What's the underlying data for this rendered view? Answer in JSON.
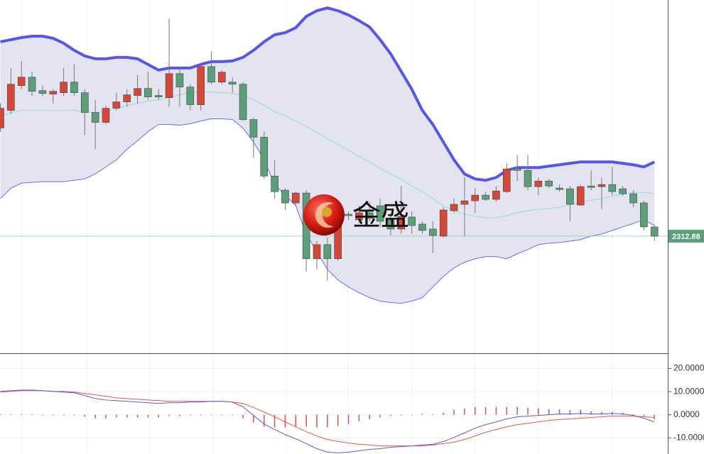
{
  "chart_data": [
    {
      "type": "candlestick",
      "ylim": [
        2230,
        2480
      ],
      "up_color": "#d4483a",
      "down_color": "#5b9e7a",
      "open": [
        2389.4,
        2401.9,
        2419.4,
        2425.4,
        2415.9,
        2413.4,
        2414.4,
        2421.9,
        2414.4,
        2400.4,
        2393.4,
        2403.4,
        2407.9,
        2412.4,
        2417.4,
        2412.4,
        2410.9,
        2427.9,
        2418.4,
        2405.9,
        2432.9,
        2421.9,
        2421.9,
        2420.4,
        2395.4,
        2382.9,
        2355.4,
        2345.4,
        2336.4,
        2343.4,
        2296.9,
        2306.9,
        2296.9,
        2328.4,
        2324.4,
        2329.4,
        2334.4,
        2324.4,
        2317.9,
        2326.4,
        2321.4,
        2317.9,
        2312.9,
        2330.9,
        2335.4,
        2337.9,
        2341.9,
        2338.9,
        2344.4,
        2360.9,
        2359.4,
        2347.9,
        2351.9,
        2346.9,
        2346.4,
        2334.9,
        2348.4,
        2347.9,
        2349.4,
        2346.4,
        2342.9,
        2336.4,
        2319.4
      ],
      "high": [
        2406.9,
        2431.9,
        2436.9,
        2429.4,
        2419.4,
        2416.9,
        2431.9,
        2434.4,
        2416.9,
        2409.4,
        2405.4,
        2414.4,
        2416.9,
        2426.9,
        2429.4,
        2416.9,
        2466.9,
        2431.9,
        2420.4,
        2434.4,
        2443.4,
        2430.4,
        2425.4,
        2421.9,
        2396.9,
        2386.9,
        2366.9,
        2346.9,
        2344.4,
        2345.4,
        2309.4,
        2311.9,
        2334.4,
        2330.4,
        2334.4,
        2336.9,
        2339.4,
        2329.4,
        2348.4,
        2330.4,
        2323.4,
        2323.4,
        2333.4,
        2339.4,
        2354.4,
        2346.9,
        2344.4,
        2348.4,
        2364.4,
        2370.4,
        2370.4,
        2354.4,
        2353.4,
        2349.4,
        2348.4,
        2349.4,
        2359.4,
        2354.4,
        2361.9,
        2348.4,
        2345.4,
        2337.9,
        2320.4
      ],
      "low": [
        2386.9,
        2399.4,
        2416.9,
        2411.9,
        2411.9,
        2406.9,
        2411.9,
        2411.9,
        2384.4,
        2374.4,
        2391.9,
        2401.9,
        2404.4,
        2406.9,
        2409.4,
        2409.4,
        2404.4,
        2404.4,
        2401.9,
        2401.9,
        2420.4,
        2420.4,
        2414.4,
        2394.4,
        2368.4,
        2353.4,
        2339.4,
        2331.4,
        2334.4,
        2287.9,
        2289.4,
        2281.4,
        2295.4,
        2324.4,
        2321.9,
        2323.4,
        2319.4,
        2313.4,
        2314.4,
        2314.4,
        2314.4,
        2300.9,
        2311.9,
        2329.4,
        2312.9,
        2329.4,
        2337.9,
        2337.4,
        2343.4,
        2351.9,
        2345.4,
        2341.9,
        2346.9,
        2344.4,
        2323.4,
        2334.4,
        2345.4,
        2331.9,
        2341.9,
        2341.4,
        2333.4,
        2316.9,
        2309.4
      ],
      "close": [
        2403.4,
        2420.4,
        2425.4,
        2415.4,
        2413.9,
        2415.4,
        2421.9,
        2414.4,
        2400.4,
        2393.4,
        2403.4,
        2407.9,
        2412.9,
        2417.4,
        2411.4,
        2411.4,
        2427.9,
        2418.4,
        2405.9,
        2432.9,
        2421.9,
        2428.9,
        2420.4,
        2395.4,
        2382.9,
        2355.4,
        2344.4,
        2336.4,
        2343.4,
        2296.9,
        2306.9,
        2296.9,
        2331.9,
        2327.4,
        2329.4,
        2325.4,
        2323.4,
        2317.9,
        2326.9,
        2320.4,
        2316.9,
        2313.4,
        2331.4,
        2335.4,
        2337.9,
        2341.9,
        2338.9,
        2344.9,
        2360.4,
        2359.4,
        2347.9,
        2351.9,
        2348.4,
        2345.9,
        2335.4,
        2347.9,
        2347.4,
        2349.4,
        2344.4,
        2342.9,
        2336.4,
        2319.4,
        2312.88
      ],
      "upper_band": {
        "color": "#5656ea",
        "values": [
          2450.4,
          2451.9,
          2453.4,
          2454.4,
          2454.4,
          2452.9,
          2449.4,
          2444.4,
          2440.4,
          2438.4,
          2438.4,
          2439.4,
          2439.4,
          2438.4,
          2434.4,
          2430.4,
          2431.9,
          2431.9,
          2431.9,
          2434.4,
          2436.4,
          2436.4,
          2436.9,
          2439.4,
          2444.4,
          2450.4,
          2455.4,
          2456.9,
          2460.4,
          2468.4,
          2472.4,
          2474.4,
          2472.4,
          2469.4,
          2465.4,
          2460.9,
          2451.9,
          2441.9,
          2429.4,
          2416.9,
          2401.9,
          2391.9,
          2379.4,
          2366.9,
          2356.9,
          2353.4,
          2352.4,
          2354.4,
          2359.4,
          2361.4,
          2361.4,
          2361.4,
          2362.4,
          2363.4,
          2364.4,
          2365.4,
          2365.4,
          2365.4,
          2365.4,
          2364.4,
          2363.4,
          2361.9,
          2365.4
        ]
      },
      "middle_band": {
        "color": "#95dccb",
        "values": [
          2396.9,
          2400.4,
          2401.9,
          2401.9,
          2401.9,
          2401.9,
          2401.9,
          2401.9,
          2400.9,
          2400.4,
          2400.9,
          2403.4,
          2405.4,
          2406.9,
          2408.4,
          2409.4,
          2410.9,
          2412.9,
          2414.4,
          2414.9,
          2414.9,
          2414.4,
          2413.9,
          2412.4,
          2409.4,
          2405.4,
          2400.9,
          2397.9,
          2394.4,
          2390.4,
          2386.4,
          2381.9,
          2377.9,
          2373.4,
          2369.4,
          2365.4,
          2360.9,
          2356.9,
          2352.9,
          2348.4,
          2344.4,
          2339.4,
          2334.4,
          2330.9,
          2328.4,
          2326.9,
          2325.9,
          2325.9,
          2327.4,
          2329.4,
          2330.9,
          2331.9,
          2332.4,
          2333.4,
          2335.4,
          2336.4,
          2338.4,
          2339.4,
          2341.4,
          2342.4,
          2343.9,
          2343.9,
          2342.9
        ]
      },
      "lower_band": {
        "color": "#6c6ce4",
        "values": [
          2339.4,
          2346.9,
          2350.4,
          2350.9,
          2351.4,
          2351.4,
          2351.4,
          2352.4,
          2353.4,
          2356.9,
          2361.9,
          2366.9,
          2374.4,
          2380.4,
          2386.9,
          2391.9,
          2391.9,
          2391.4,
          2392.4,
          2394.4,
          2395.9,
          2395.9,
          2395.4,
          2389.4,
          2379.4,
          2366.9,
          2349.4,
          2341.9,
          2334.4,
          2314.4,
          2301.9,
          2289.4,
          2281.9,
          2276.9,
          2272.9,
          2269.4,
          2266.9,
          2265.9,
          2265.4,
          2266.9,
          2269.4,
          2276.9,
          2284.4,
          2290.4,
          2294.4,
          2296.9,
          2298.4,
          2298.4,
          2296.9,
          2300.4,
          2303.4,
          2306.9,
          2307.9,
          2308.4,
          2309.4,
          2310.4,
          2312.9,
          2314.4,
          2316.9,
          2319.4,
          2321.9,
          2324.4,
          2320.4
        ]
      },
      "band_fill": "#e4e4f0",
      "price_label": 2312.88,
      "watermark": "金盛"
    },
    {
      "type": "macd",
      "ylim": [
        -17,
        26
      ],
      "yticks": [
        {
          "value": 20,
          "label": "20.0000"
        },
        {
          "value": 10,
          "label": "10.0000"
        },
        {
          "value": 0,
          "label": "0.0000"
        },
        {
          "value": -10,
          "label": "-10.0000"
        }
      ],
      "grid": true,
      "dif": {
        "color": "#5a5ae0",
        "values": [
          10.1,
          10.4,
          10.7,
          10.7,
          10.4,
          10.1,
          9.8,
          9.5,
          8.3,
          7.0,
          6.4,
          6.1,
          5.8,
          5.5,
          5.2,
          4.9,
          5.2,
          5.2,
          5.5,
          5.5,
          5.8,
          5.8,
          5.5,
          3.4,
          -0.3,
          -4.0,
          -6.4,
          -8.6,
          -10.4,
          -12.5,
          -14.7,
          -16.2,
          -16.5,
          -16.2,
          -15.6,
          -15.0,
          -14.7,
          -14.1,
          -13.8,
          -13.5,
          -13.1,
          -12.8,
          -11.6,
          -9.8,
          -7.9,
          -5.8,
          -4.3,
          -3.1,
          -1.8,
          -0.9,
          -0.6,
          -0.3,
          0,
          0.3,
          0.3,
          0.6,
          0.3,
          0.3,
          0.6,
          0.3,
          -0.3,
          -1.5,
          -3.1
        ]
      },
      "dea": {
        "color": "#e8564a",
        "values": [
          9.8,
          10.1,
          10.4,
          10.4,
          10.4,
          10.1,
          10.1,
          9.8,
          9.2,
          8.6,
          8.0,
          7.3,
          7.0,
          6.7,
          6.4,
          6.1,
          5.8,
          5.8,
          5.8,
          5.8,
          5.8,
          5.8,
          5.5,
          4.9,
          3.1,
          1.2,
          -0.9,
          -3.1,
          -5.2,
          -7.3,
          -9.2,
          -10.7,
          -11.6,
          -12.2,
          -12.8,
          -13.1,
          -13.5,
          -13.5,
          -13.5,
          -13.5,
          -13.5,
          -13.1,
          -12.5,
          -11.9,
          -10.7,
          -9.2,
          -7.6,
          -6.4,
          -5.2,
          -4.3,
          -3.7,
          -3.1,
          -2.4,
          -2.1,
          -1.8,
          -1.5,
          -1.2,
          -0.9,
          -0.6,
          -0.6,
          -0.6,
          -0.9,
          -1.2
        ]
      },
      "histogram": {
        "color": "#e0504a",
        "values": [
          0.3,
          0.3,
          0.3,
          0.3,
          0,
          0,
          -0.3,
          -0.3,
          -0.9,
          -1.6,
          -1.6,
          -1.2,
          -1.2,
          -1.2,
          -1.2,
          -1.2,
          -0.6,
          -0.6,
          -0.3,
          -0.3,
          0,
          0,
          0,
          -1.5,
          -3.4,
          -5.2,
          -5.5,
          -5.5,
          -5.2,
          -5.2,
          -5.5,
          -5.5,
          -4.9,
          -4.0,
          -2.8,
          -1.9,
          -1.2,
          -0.6,
          -0.3,
          0,
          0.4,
          0.3,
          0.9,
          2.1,
          2.8,
          3.4,
          3.3,
          3.3,
          3.4,
          3.4,
          3.1,
          2.8,
          2.4,
          2.4,
          2.1,
          2.1,
          1.5,
          1.2,
          1.2,
          0.9,
          0.3,
          -0.6,
          -1.9
        ]
      }
    }
  ]
}
